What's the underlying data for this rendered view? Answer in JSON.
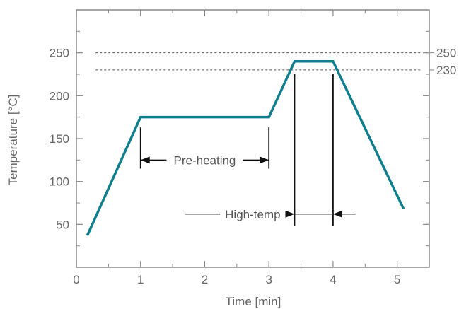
{
  "chart_data": {
    "type": "line",
    "title": "",
    "xlabel": "Time [min]",
    "ylabel": "Temperature [°C]",
    "xlim": [
      0,
      5.5
    ],
    "ylim": [
      0,
      300
    ],
    "xticks": [
      0,
      1,
      2,
      3,
      4,
      5
    ],
    "yticks": [
      50,
      100,
      150,
      200,
      250
    ],
    "grid": false,
    "series": [
      {
        "x": [
          0.17,
          1.0,
          3.0,
          3.4,
          4.0,
          5.1
        ],
        "y": [
          37,
          175,
          175,
          240,
          240,
          68
        ],
        "color": "#0e7f8e"
      }
    ],
    "reference_lines": [
      {
        "value": 250,
        "label": "250"
      },
      {
        "value": 230,
        "label": "230"
      }
    ],
    "annotations": [
      {
        "text": "Pre-heating",
        "y": 125,
        "x_start": 1.0,
        "x_end": 3.0,
        "marker_top": 163,
        "marker_bottom": 115
      },
      {
        "text": "High-temp",
        "y": 62,
        "x_start": 3.4,
        "x_end": 4.0,
        "outer_start": 1.7,
        "outer_end": 4.35,
        "marker_top": 225,
        "marker_bottom": 48
      }
    ],
    "axis_color": "#888888",
    "line_color": "#0e7f8e"
  }
}
